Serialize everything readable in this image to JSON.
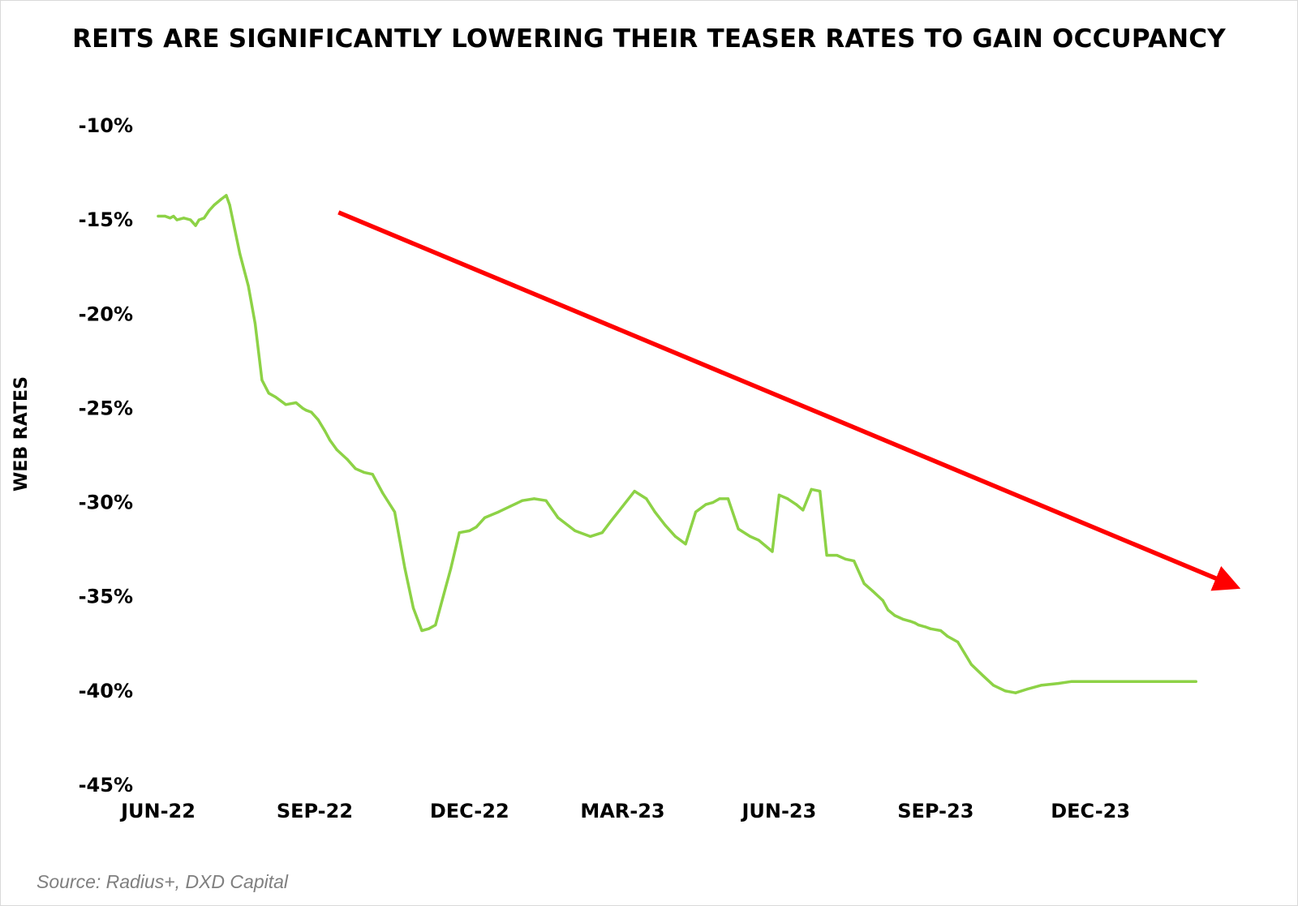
{
  "title": "REITS ARE SIGNIFICANTLY LOWERING THEIR TEASER RATES TO GAIN OCCUPANCY",
  "source": "Source: Radius+, DXD Capital",
  "colors": {
    "line": "#8dd246",
    "arrow": "#ff0000",
    "text": "#000000",
    "source_text": "#7f7f7f",
    "frame": "#d9d9d9"
  },
  "chart_data": {
    "type": "line",
    "title": "REITS ARE SIGNIFICANTLY LOWERING THEIR TEASER RATES TO GAIN OCCUPANCY",
    "xlabel": "",
    "ylabel": "WEB RATES",
    "ylim": [
      -45,
      -10
    ],
    "yticks": [
      -10,
      -15,
      -20,
      -25,
      -30,
      -35,
      -40,
      -45
    ],
    "ytick_labels": [
      "-10%",
      "-15%",
      "-20%",
      "-25%",
      "-30%",
      "-35%",
      "-40%",
      "-45%"
    ],
    "xlim": [
      "2022-06-01",
      "2024-02-20"
    ],
    "xticks": [
      "2022-06-01",
      "2022-09-01",
      "2022-12-01",
      "2023-03-01",
      "2023-06-01",
      "2023-09-01",
      "2023-12-01"
    ],
    "xtick_labels": [
      "JUN-22",
      "SEP-22",
      "DEC-22",
      "MAR-23",
      "JUN-23",
      "SEP-23",
      "DEC-23"
    ],
    "grid": false,
    "legend": "none",
    "series": [
      {
        "x": [
          "2022-06-01",
          "2022-06-05",
          "2022-06-08",
          "2022-06-10",
          "2022-06-12",
          "2022-06-16",
          "2022-06-20",
          "2022-06-23",
          "2022-06-25",
          "2022-06-28",
          "2022-07-01",
          "2022-07-04",
          "2022-07-08",
          "2022-07-11",
          "2022-07-13",
          "2022-07-16",
          "2022-07-19",
          "2022-07-24",
          "2022-07-28",
          "2022-08-01",
          "2022-08-05",
          "2022-08-09",
          "2022-08-15",
          "2022-08-21",
          "2022-08-25",
          "2022-08-27",
          "2022-08-30",
          "2022-09-03",
          "2022-09-07",
          "2022-09-10",
          "2022-09-14",
          "2022-09-20",
          "2022-09-25",
          "2022-09-30",
          "2022-10-05",
          "2022-10-11",
          "2022-10-18",
          "2022-10-24",
          "2022-10-29",
          "2022-11-03",
          "2022-11-07",
          "2022-11-11",
          "2022-11-14",
          "2022-11-17",
          "2022-11-20",
          "2022-11-25",
          "2022-12-01",
          "2022-12-05",
          "2022-12-10",
          "2022-12-18",
          "2022-12-25",
          "2023-01-01",
          "2023-01-08",
          "2023-01-15",
          "2023-01-22",
          "2023-02-01",
          "2023-02-10",
          "2023-02-17",
          "2023-02-22",
          "2023-03-01",
          "2023-03-08",
          "2023-03-15",
          "2023-03-20",
          "2023-03-26",
          "2023-04-01",
          "2023-04-07",
          "2023-04-13",
          "2023-04-19",
          "2023-04-23",
          "2023-04-27",
          "2023-05-02",
          "2023-05-08",
          "2023-05-15",
          "2023-05-20",
          "2023-05-24",
          "2023-05-28",
          "2023-06-01",
          "2023-06-06",
          "2023-06-11",
          "2023-06-15",
          "2023-06-20",
          "2023-06-25",
          "2023-06-29",
          "2023-07-05",
          "2023-07-10",
          "2023-07-15",
          "2023-07-21",
          "2023-07-26",
          "2023-08-01",
          "2023-08-04",
          "2023-08-08",
          "2023-08-13",
          "2023-08-17",
          "2023-08-20",
          "2023-08-22",
          "2023-08-26",
          "2023-08-29",
          "2023-09-04",
          "2023-09-08",
          "2023-09-14",
          "2023-09-18",
          "2023-09-22",
          "2023-09-29",
          "2023-10-05",
          "2023-10-12",
          "2023-10-18",
          "2023-10-25",
          "2023-11-02",
          "2023-11-12",
          "2023-11-20",
          "2023-11-26",
          "2023-12-01",
          "2023-12-08",
          "2023-12-15",
          "2023-12-22",
          "2023-12-29",
          "2024-01-05",
          "2024-01-11",
          "2024-01-17",
          "2024-01-22",
          "2024-01-26",
          "2024-02-01"
        ],
        "values": [
          -14.8,
          -14.8,
          -14.9,
          -14.8,
          -15.0,
          -14.9,
          -15.0,
          -15.3,
          -15.0,
          -14.9,
          -14.5,
          -14.2,
          -13.9,
          -13.7,
          -14.2,
          -15.5,
          -16.8,
          -18.5,
          -20.5,
          -23.5,
          -24.2,
          -24.4,
          -24.8,
          -24.7,
          -25.0,
          -25.1,
          -25.2,
          -25.6,
          -26.2,
          -26.7,
          -27.2,
          -27.7,
          -28.2,
          -28.4,
          -28.5,
          -29.5,
          -30.5,
          -33.5,
          -35.6,
          -36.8,
          -36.7,
          -36.5,
          -35.5,
          -34.5,
          -33.5,
          -31.6,
          -31.5,
          -31.3,
          -30.8,
          -30.5,
          -30.2,
          -29.9,
          -29.8,
          -29.9,
          -30.8,
          -31.5,
          -31.8,
          -31.6,
          -31.0,
          -30.2,
          -29.4,
          -29.8,
          -30.5,
          -31.2,
          -31.8,
          -32.2,
          -30.5,
          -30.1,
          -30.0,
          -29.8,
          -29.8,
          -31.4,
          -31.8,
          -32.0,
          -32.3,
          -32.6,
          -29.6,
          -29.8,
          -30.1,
          -30.4,
          -29.3,
          -29.4,
          -32.8,
          -32.8,
          -33.0,
          -33.1,
          -34.3,
          -34.7,
          -35.2,
          -35.7,
          -36.0,
          -36.2,
          -36.3,
          -36.4,
          -36.5,
          -36.6,
          -36.7,
          -36.8,
          -37.1,
          -37.4,
          -38.0,
          -38.6,
          -39.2,
          -39.7,
          -40.0,
          -40.1,
          -39.9,
          -39.7,
          -39.6,
          -39.5,
          -39.5,
          -39.5,
          -39.5,
          -39.5,
          -39.5,
          -39.5,
          -39.5,
          -39.5,
          -39.5,
          -39.5,
          -39.5,
          -39.5
        ]
      }
    ],
    "annotations": [
      {
        "type": "trend-arrow",
        "from": {
          "x": "2022-09-15",
          "y": -14.6
        },
        "to": {
          "x": "2024-02-20",
          "y": -34.3
        }
      }
    ]
  }
}
